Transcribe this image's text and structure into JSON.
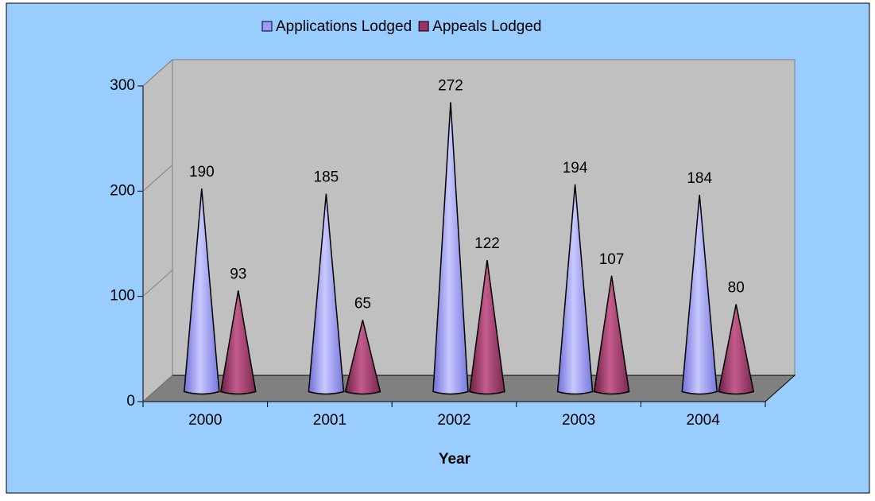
{
  "chart_data": {
    "type": "cone3d",
    "x_label": "Year",
    "categories": [
      "2000",
      "2001",
      "2002",
      "2003",
      "2004"
    ],
    "series": [
      {
        "name": "Applications Lodged",
        "color": "#9999ff",
        "values": [
          190,
          185,
          272,
          194,
          184
        ]
      },
      {
        "name": "Appeals Lodged",
        "color": "#993366",
        "values": [
          93,
          65,
          122,
          107,
          80
        ]
      }
    ],
    "ylim": [
      0,
      300
    ],
    "yticks": [
      0,
      100,
      200,
      300
    ],
    "legend": "top"
  }
}
